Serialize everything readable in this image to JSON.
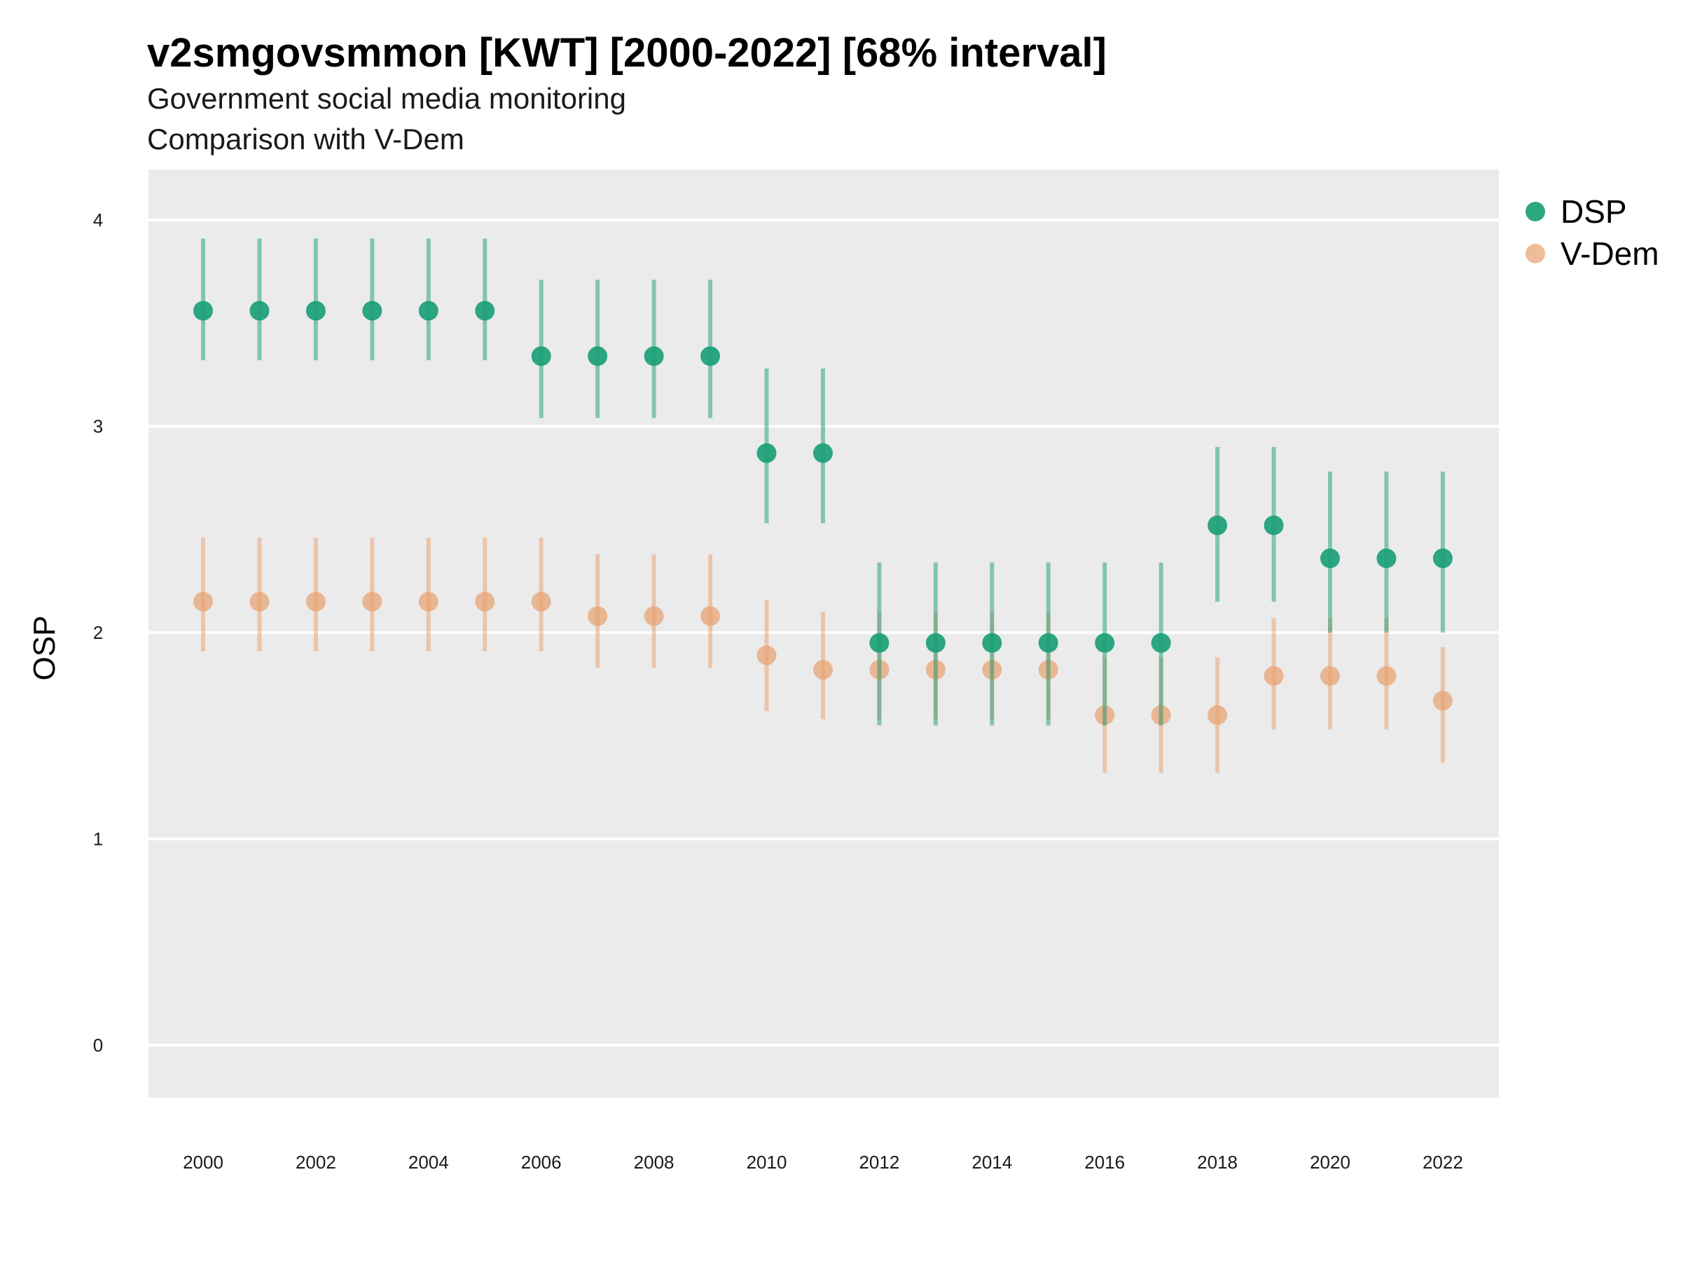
{
  "chart_data": {
    "type": "scatter",
    "title": "v2smgovsmmon [KWT] [2000-2022] [68% interval]",
    "subtitle": "Government social media monitoring",
    "subtitle2": "Comparison with V-Dem",
    "xlabel": "",
    "ylabel": "OSP",
    "ylim": [
      -0.25,
      4.25
    ],
    "yticks": [
      0,
      1,
      2,
      3,
      4
    ],
    "xticks": [
      2000,
      2002,
      2004,
      2006,
      2008,
      2010,
      2012,
      2014,
      2016,
      2018,
      2020,
      2022
    ],
    "x": [
      2000,
      2001,
      2002,
      2003,
      2004,
      2005,
      2006,
      2007,
      2008,
      2009,
      2010,
      2011,
      2012,
      2013,
      2014,
      2015,
      2016,
      2017,
      2018,
      2019,
      2020,
      2021,
      2022
    ],
    "legend_position": "top-right",
    "series": [
      {
        "name": "DSP",
        "color": "#1b9e77",
        "values": [
          3.56,
          3.56,
          3.56,
          3.56,
          3.56,
          3.56,
          3.34,
          3.34,
          3.34,
          3.34,
          2.87,
          2.87,
          1.95,
          1.95,
          1.95,
          1.95,
          1.95,
          1.95,
          2.52,
          2.52,
          2.36,
          2.36,
          2.36
        ],
        "lower": [
          3.32,
          3.32,
          3.32,
          3.32,
          3.32,
          3.32,
          3.04,
          3.04,
          3.04,
          3.04,
          2.53,
          2.53,
          1.55,
          1.55,
          1.55,
          1.55,
          1.55,
          1.55,
          2.15,
          2.15,
          2.0,
          2.0,
          2.0
        ],
        "upper": [
          3.91,
          3.91,
          3.91,
          3.91,
          3.91,
          3.91,
          3.71,
          3.71,
          3.71,
          3.71,
          3.28,
          3.28,
          2.34,
          2.34,
          2.34,
          2.34,
          2.34,
          2.34,
          2.9,
          2.9,
          2.78,
          2.78,
          2.78
        ]
      },
      {
        "name": "V-Dem",
        "color": "#e8a06e",
        "values": [
          2.15,
          2.15,
          2.15,
          2.15,
          2.15,
          2.15,
          2.15,
          2.08,
          2.08,
          2.08,
          1.89,
          1.82,
          1.82,
          1.82,
          1.82,
          1.82,
          1.6,
          1.6,
          1.6,
          1.79,
          1.79,
          1.79,
          1.67
        ],
        "lower": [
          1.91,
          1.91,
          1.91,
          1.91,
          1.91,
          1.91,
          1.91,
          1.83,
          1.83,
          1.83,
          1.62,
          1.58,
          1.58,
          1.58,
          1.58,
          1.58,
          1.32,
          1.32,
          1.32,
          1.53,
          1.53,
          1.53,
          1.37
        ],
        "upper": [
          2.46,
          2.46,
          2.46,
          2.46,
          2.46,
          2.46,
          2.46,
          2.38,
          2.38,
          2.38,
          2.16,
          2.1,
          2.1,
          2.1,
          2.1,
          2.1,
          1.88,
          1.88,
          1.88,
          2.07,
          2.07,
          2.07,
          1.93
        ]
      }
    ]
  },
  "colors": {
    "panel_background": "#ebebeb",
    "grid": "#ffffff"
  }
}
